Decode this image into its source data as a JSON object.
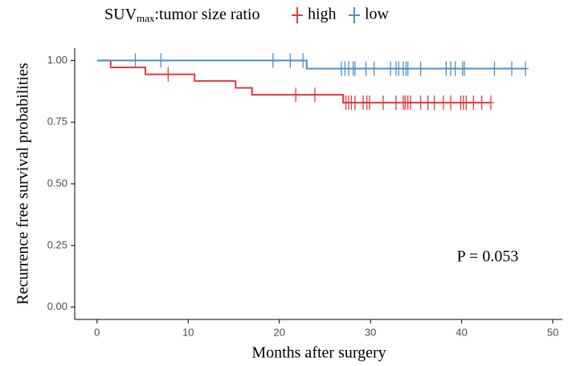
{
  "chart_data": {
    "type": "step",
    "legend_title": [
      "SUV",
      "max",
      ":tumor size ratio"
    ],
    "x_label": "Months after surgery",
    "y_label": "Recurrence free survival probabilities",
    "annotation": "P = 0.053",
    "xlim": [
      -2.45,
      51.05
    ],
    "ylim": [
      -0.05,
      1.05
    ],
    "xticks": [
      0,
      10,
      20,
      30,
      40,
      50
    ],
    "yticks": [
      {
        "value": 0,
        "label": "0.00"
      },
      {
        "value": 0.25,
        "label": "0.25"
      },
      {
        "value": 0.5,
        "label": "0.50"
      },
      {
        "value": 0.75,
        "label": "0.75"
      },
      {
        "value": 1,
        "label": "1.00"
      }
    ],
    "series": [
      {
        "name": "high",
        "color": "#e0393e",
        "x": [
          0,
          1.5,
          5.3,
          10.7,
          15.2,
          17.0,
          27.0,
          43.2
        ],
        "values": [
          1,
          0.972,
          0.944,
          0.917,
          0.889,
          0.861,
          0.829,
          0.829
        ],
        "censor_x": [
          7.8,
          21.8,
          23.9,
          27.3,
          27.6,
          27.9,
          28.3,
          29.2,
          29.6,
          29.9,
          31.4,
          32.8,
          33.6,
          33.8,
          34.1,
          34.4,
          35.5,
          36.3,
          37.0,
          38.0,
          38.8,
          39.9,
          40.2,
          40.5,
          41.3,
          42.2,
          43.2
        ],
        "censor_values": [
          0.944,
          0.861,
          0.861,
          0.829,
          0.829,
          0.829,
          0.829,
          0.829,
          0.829,
          0.829,
          0.829,
          0.829,
          0.829,
          0.829,
          0.829,
          0.829,
          0.829,
          0.829,
          0.829,
          0.829,
          0.829,
          0.829,
          0.829,
          0.829,
          0.829,
          0.829,
          0.829
        ]
      },
      {
        "name": "low",
        "color": "#4f8ec4",
        "x": [
          0,
          23.0,
          47.0
        ],
        "values": [
          1,
          0.967,
          0.967
        ],
        "censor_x": [
          4.2,
          7.0,
          19.3,
          21.2,
          22.6,
          26.8,
          27.2,
          27.6,
          28.1,
          28.3,
          29.5,
          30.4,
          32.2,
          32.8,
          33.1,
          33.6,
          33.9,
          34.1,
          35.5,
          38.3,
          38.8,
          39.3,
          40.1,
          40.3,
          43.6,
          45.5,
          47.0
        ],
        "censor_values": [
          1,
          1,
          1,
          1,
          1,
          0.967,
          0.967,
          0.967,
          0.967,
          0.967,
          0.967,
          0.967,
          0.967,
          0.967,
          0.967,
          0.967,
          0.967,
          0.967,
          0.967,
          0.967,
          0.967,
          0.967,
          0.967,
          0.967,
          0.967,
          0.967,
          0.967
        ]
      }
    ]
  }
}
